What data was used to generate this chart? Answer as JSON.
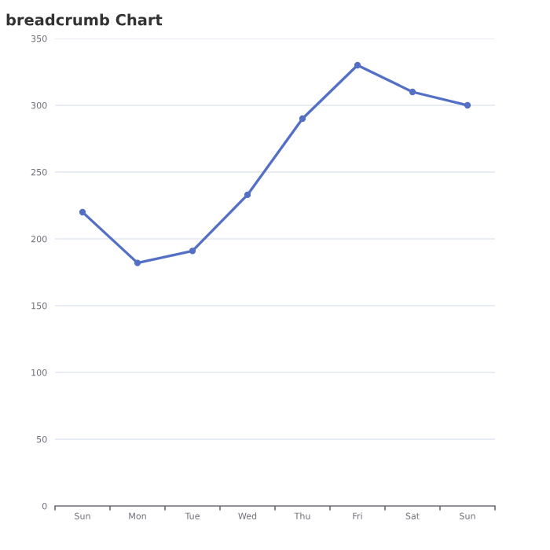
{
  "chart_data": {
    "type": "line",
    "title": "breadcrumb Chart",
    "categories": [
      "Sun",
      "Mon",
      "Tue",
      "Wed",
      "Thu",
      "Fri",
      "Sat",
      "Sun"
    ],
    "series": [
      {
        "color": "#5470c6",
        "values": [
          220,
          182,
          191,
          233,
          290,
          330,
          310,
          300
        ]
      }
    ],
    "ylim": [
      0,
      350
    ],
    "yticks": [
      0,
      50,
      100,
      150,
      200,
      250,
      300,
      350
    ],
    "grid": "y",
    "marker": "circle",
    "line_style": "solid"
  }
}
